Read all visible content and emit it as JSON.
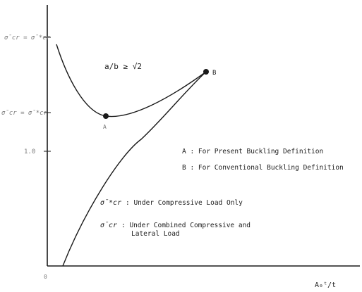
{
  "figure": {
    "y_labels": {
      "top": "σ̄cr = σ̄*cr",
      "mid": "σ̄cr = σ̄*cr",
      "low": "1.0"
    },
    "aspect_condition": "a/b ≥ √2",
    "point_a": "A",
    "point_b": "B",
    "legend": {
      "a": "A : For Present Buckling Definition",
      "b": "B : For Conventional Buckling Definition"
    },
    "notes": {
      "star_symbol": "σ̄*cr",
      "star_text": ": Under Compressive Load Only",
      "plain_symbol": "σ̄cr",
      "plain_text_1": ": Under Combined Compressive and",
      "plain_text_2": "Lateral Load"
    },
    "x_origin": "0",
    "x_label": "A₀ᵗ/t"
  },
  "colors": {
    "ink": "#1a1a1a",
    "background": "#ffffff"
  }
}
